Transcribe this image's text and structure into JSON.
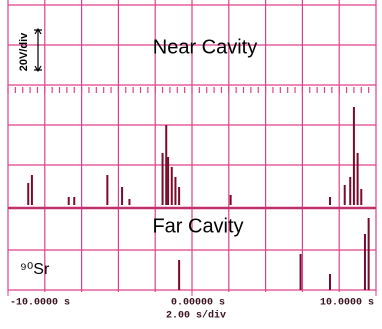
{
  "chart_data": [
    {
      "type": "spike",
      "title": "Near Cavity",
      "ylabel": "20V/div",
      "color": "#7a0a2a",
      "x": [
        -8.9,
        -8.7,
        -6.7,
        -6.4,
        -4.6,
        -3.8,
        -3.4,
        -1.6,
        -1.4,
        -1.3,
        -1.1,
        -0.9,
        -0.7,
        2.1,
        7.5,
        8.3,
        8.6,
        8.8,
        9.0,
        9.2
      ],
      "values": [
        11,
        15,
        4,
        4,
        15,
        9,
        3,
        26,
        40,
        24,
        19,
        14,
        9,
        5,
        4,
        10,
        14,
        49,
        26,
        8
      ],
      "xlim": [
        -10,
        10
      ],
      "ylim": [
        0,
        100
      ]
    },
    {
      "type": "spike",
      "title": "Far Cavity",
      "annotation": "⁹⁰Sr",
      "color": "#7a0a2a",
      "x": [
        -0.7,
        5.9,
        7.5,
        9.4,
        9.6
      ],
      "values": [
        15,
        18,
        8,
        28,
        36
      ],
      "xlim": [
        -10,
        10
      ],
      "ylim": [
        0,
        40
      ],
      "xticks": [
        {
          "value": -10,
          "label": "-10.0000 s"
        },
        {
          "value": 0,
          "label": "0.00000 s"
        },
        {
          "value": 10,
          "label": "10.0000 s"
        }
      ],
      "xlabel": "2.00 s/div"
    }
  ]
}
